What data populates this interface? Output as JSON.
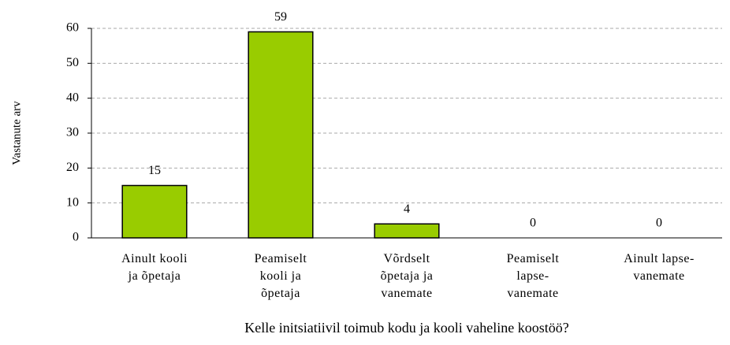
{
  "chart_data": {
    "type": "bar",
    "categories": [
      "Ainult kooli\nja õpetaja",
      "Peamiselt\nkooli ja\nõpetaja",
      "Võrdselt\nõpetaja ja\nvanemate",
      "Peamiselt\nlapse-\nvanemate",
      "Ainult lapse-\nvanemate"
    ],
    "values": [
      15,
      59,
      4,
      0,
      0
    ],
    "color": "#99cc00",
    "ylim": [
      0,
      60
    ],
    "yticks": [
      0,
      10,
      20,
      30,
      40,
      50,
      60
    ],
    "grid": true,
    "ylabel": "Vastanute arv",
    "xlabel": "Kelle initsiatiivil toimub kodu ja kooli vaheline koostöö?"
  }
}
